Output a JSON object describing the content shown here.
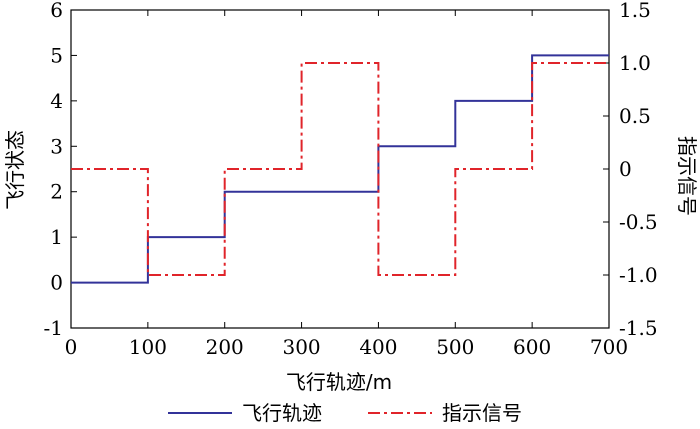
{
  "chart_data": {
    "type": "line",
    "step": true,
    "xlabel": "飞行轨迹/m",
    "ylabel_left": "飞行状态",
    "ylabel_right": "指示信号",
    "xlim": [
      0,
      700
    ],
    "ylim_left": [
      -1,
      6
    ],
    "ylim_right": [
      -1.5,
      1.5
    ],
    "x_ticks": [
      "0",
      "100",
      "200",
      "300",
      "400",
      "500",
      "600",
      "700"
    ],
    "y_left_ticks": [
      "-1",
      "0",
      "1",
      "2",
      "3",
      "4",
      "5",
      "6"
    ],
    "y_right_ticks": [
      "-1.5",
      "-1.0",
      "-0.5",
      "0",
      "0.5",
      "1.0",
      "1.5"
    ],
    "grid": false,
    "legend_position": "bottom",
    "series": [
      {
        "name": "飞行轨迹",
        "axis": "left",
        "color": "#333399",
        "style": "solid",
        "points": [
          [
            0,
            0
          ],
          [
            100,
            0
          ],
          [
            100,
            1
          ],
          [
            200,
            1
          ],
          [
            200,
            2
          ],
          [
            400,
            2
          ],
          [
            400,
            3
          ],
          [
            500,
            3
          ],
          [
            500,
            4
          ],
          [
            600,
            4
          ],
          [
            600,
            5
          ],
          [
            700,
            5
          ]
        ]
      },
      {
        "name": "指示信号",
        "axis": "right",
        "color": "#e0242a",
        "style": "dashdot",
        "points": [
          [
            0,
            0
          ],
          [
            100,
            0
          ],
          [
            100,
            -1
          ],
          [
            200,
            -1
          ],
          [
            200,
            0
          ],
          [
            300,
            0
          ],
          [
            300,
            1
          ],
          [
            400,
            1
          ],
          [
            400,
            -1
          ],
          [
            500,
            -1
          ],
          [
            500,
            0
          ],
          [
            600,
            0
          ],
          [
            600,
            1
          ],
          [
            700,
            1
          ]
        ]
      }
    ]
  }
}
